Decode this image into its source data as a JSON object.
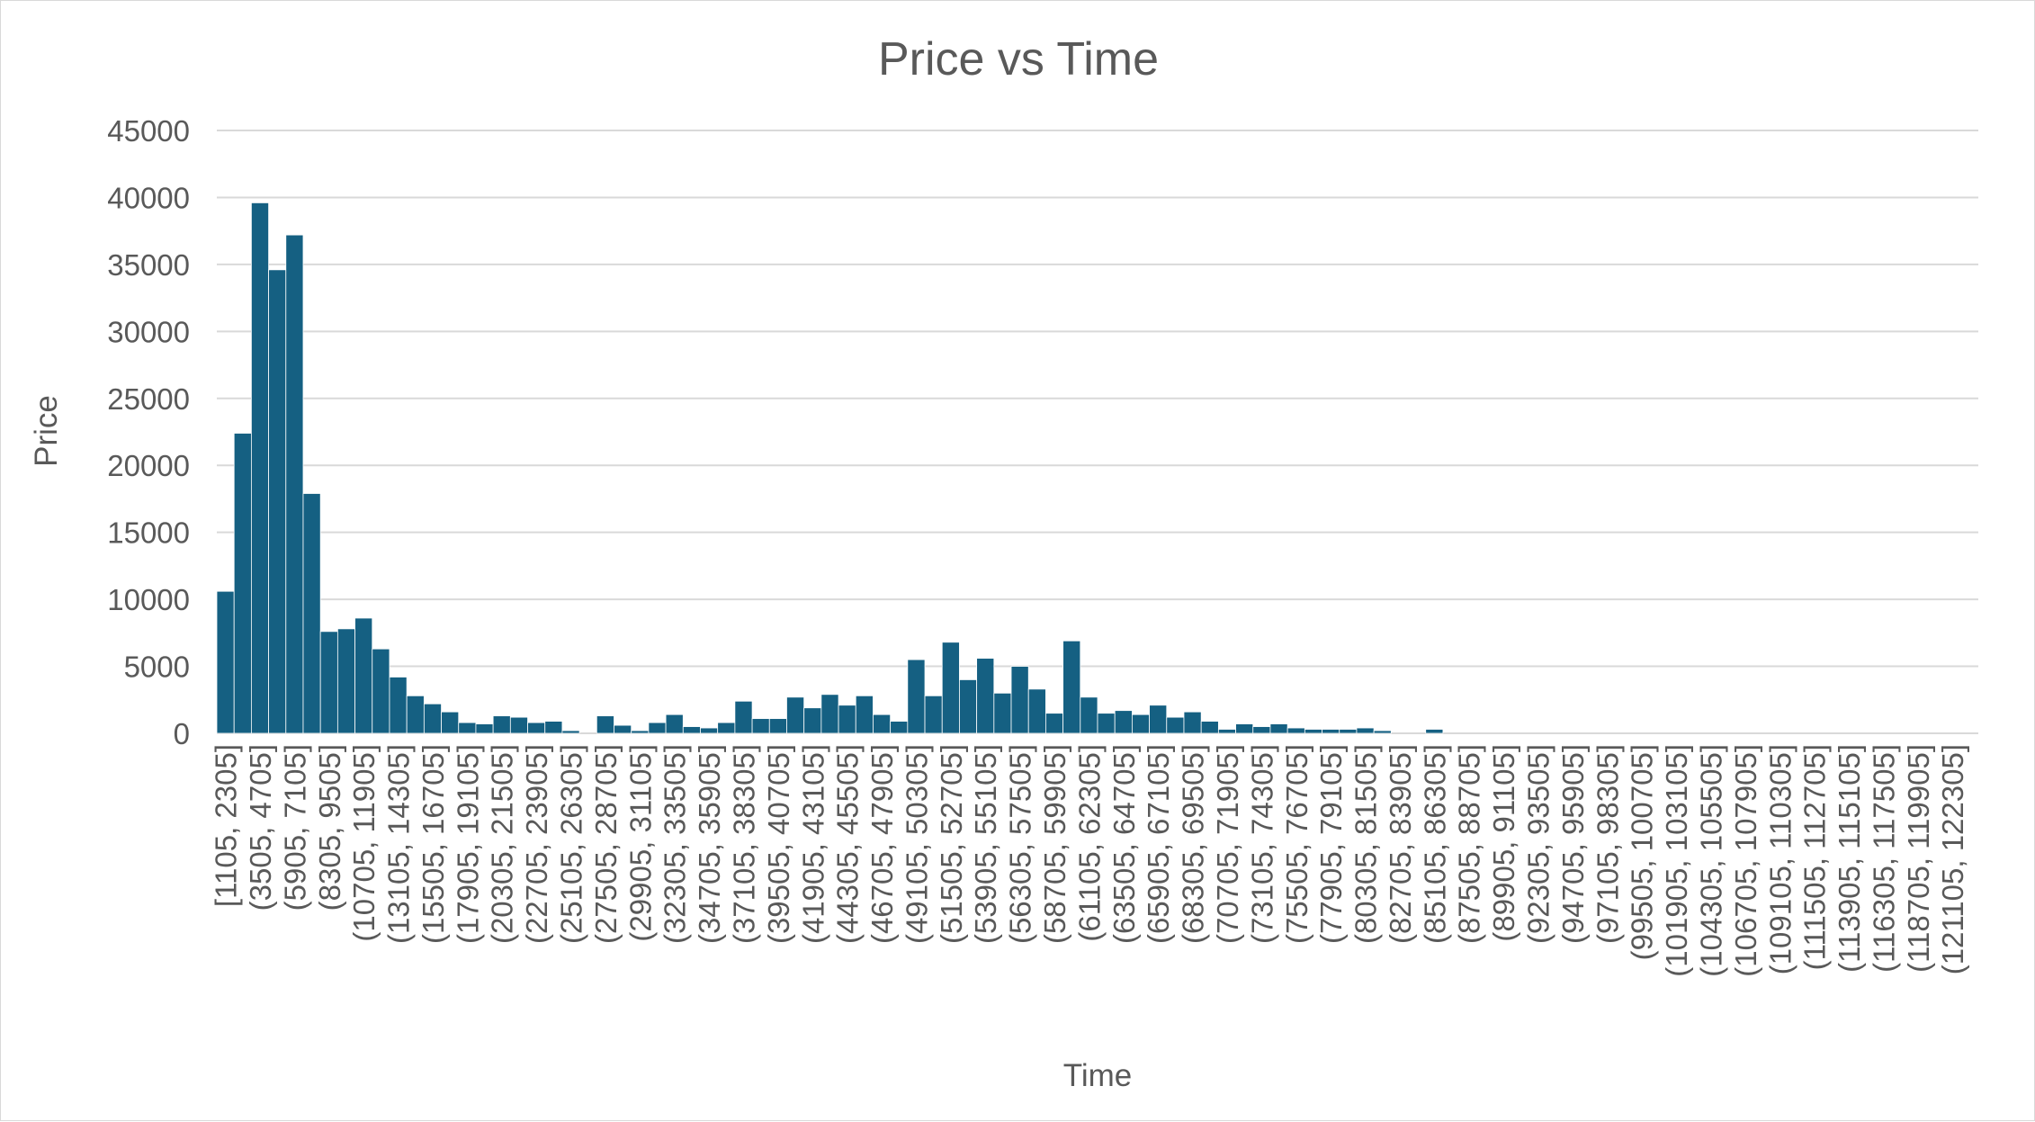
{
  "chart_data": {
    "type": "bar",
    "title": "Price vs Time",
    "xlabel": "Time",
    "ylabel": "Price",
    "ylim": [
      0,
      45000
    ],
    "yticks": [
      0,
      5000,
      10000,
      15000,
      20000,
      25000,
      30000,
      35000,
      40000,
      45000
    ],
    "grid": true,
    "legend": "none",
    "bar_color": "#156082",
    "categories": [
      "[1105, 2305]",
      "(2305, 3505]",
      "(3505, 4705]",
      "(4705, 5905]",
      "(5905, 7105]",
      "(7105, 8305]",
      "(8305, 9505]",
      "(9505, 10705]",
      "(10705, 11905]",
      "(11905, 13105]",
      "(13105, 14305]",
      "(14305, 15505]",
      "(15505, 16705]",
      "(16705, 17905]",
      "(17905, 19105]",
      "(19105, 20305]",
      "(20305, 21505]",
      "(21505, 22705]",
      "(22705, 23905]",
      "(23905, 25105]",
      "(25105, 26305]",
      "(26305, 27505]",
      "(27505, 28705]",
      "(28705, 29905]",
      "(29905, 31105]",
      "(31105, 32305]",
      "(32305, 33505]",
      "(33505, 34705]",
      "(34705, 35905]",
      "(35905, 37105]",
      "(37105, 38305]",
      "(38305, 39505]",
      "(39505, 40705]",
      "(40705, 41905]",
      "(41905, 43105]",
      "(43105, 44305]",
      "(44305, 45505]",
      "(45505, 46705]",
      "(46705, 47905]",
      "(47905, 49105]",
      "(49105, 50305]",
      "(50305, 51505]",
      "(51505, 52705]",
      "(52705, 53905]",
      "(53905, 55105]",
      "(55105, 56305]",
      "(56305, 57505]",
      "(57505, 58705]",
      "(58705, 59905]",
      "(59905, 61105]",
      "(61105, 62305]",
      "(62305, 63505]",
      "(63505, 64705]",
      "(64705, 65905]",
      "(65905, 67105]",
      "(67105, 68305]",
      "(68305, 69505]",
      "(69505, 70705]",
      "(70705, 71905]",
      "(71905, 73105]",
      "(73105, 74305]",
      "(74305, 75505]",
      "(75505, 76705]",
      "(76705, 77905]",
      "(77905, 79105]",
      "(79105, 80305]",
      "(80305, 81505]",
      "(81505, 82705]",
      "(82705, 83905]",
      "(83905, 85105]",
      "(85105, 86305]",
      "(86305, 87505]",
      "(87505, 88705]",
      "(88705, 89905]",
      "(89905, 91105]",
      "(91105, 92305]",
      "(92305, 93505]",
      "(93505, 94705]",
      "(94705, 95905]",
      "(95905, 97105]",
      "(97105, 98305]",
      "(98305, 99505]",
      "(99505, 100705]",
      "(100705, 101905]",
      "(101905, 103105]",
      "(103105, 104305]",
      "(104305, 105505]",
      "(105505, 106705]",
      "(106705, 107905]",
      "(107905, 109105]",
      "(109105, 110305]",
      "(110305, 111505]",
      "(111505, 112705]",
      "(112705, 113905]",
      "(113905, 115105]",
      "(115105, 116305]",
      "(116305, 117505]",
      "(117505, 118705]",
      "(118705, 119905]",
      "(119905, 121105]",
      "(121105, 122305]",
      "(122305, 123505]"
    ],
    "values": [
      10600,
      22400,
      39600,
      34600,
      37200,
      17900,
      7600,
      7800,
      8600,
      6300,
      4200,
      2800,
      2200,
      1600,
      800,
      700,
      1300,
      1200,
      800,
      900,
      200,
      0,
      1300,
      600,
      200,
      800,
      1400,
      500,
      400,
      800,
      2400,
      1100,
      1100,
      2700,
      1900,
      2900,
      2100,
      2800,
      1400,
      900,
      5500,
      2800,
      6800,
      4000,
      5600,
      3000,
      5000,
      3300,
      1500,
      6900,
      2700,
      1500,
      1700,
      1400,
      2100,
      1200,
      1600,
      900,
      300,
      700,
      500,
      700,
      400,
      300,
      300,
      300,
      400,
      200,
      0,
      0,
      300,
      0,
      0,
      0,
      0,
      0,
      0,
      0,
      0,
      0,
      0,
      0,
      0,
      0,
      0,
      0,
      0,
      0,
      0,
      0,
      0,
      0,
      0,
      0,
      0,
      0,
      0,
      0,
      0,
      0,
      0,
      0
    ],
    "shown_tick_labels": [
      "[1105, 2305]",
      "(3505, 4705]",
      "(5905, 7105]",
      "(8305, 9505]",
      "(10705, 11905]",
      "(13105, 14305]",
      "(15505, 16705]",
      "(17905, 19105]",
      "(20305, 21505]",
      "(22705, 23905]",
      "(25105, 26305]",
      "(27505, 28705]",
      "(29905, 31105]",
      "(32305, 33505]",
      "(34705, 35905]",
      "(37105, 38305]",
      "(39505, 40705]",
      "(41905, 43105]",
      "(44305, 45505]",
      "(46705, 47905]",
      "(49105, 50305]",
      "(51505, 52705]",
      "(53905, 55105]",
      "(56305, 57505]",
      "(58705, 59905]",
      "(61105, 62305]",
      "(63505, 64705]",
      "(65905, 67105]",
      "(68305, 69505]",
      "(70705, 71905]",
      "(73105, 74305]",
      "(75505, 76705]",
      "(77905, 79105]",
      "(80305, 81505]",
      "(82705, 83905]",
      "(85105, 86305]",
      "(87505, 88705]",
      "(89905, 91105]",
      "(92305, 93505]",
      "(94705, 95905]",
      "(97105, 98305]",
      "(99505, 100705]",
      "(101905, 103105]",
      "(104305, 105505]",
      "(106705, 107905]",
      "(109105, 110305]",
      "(111505, 112705]",
      "(113905, 115105]",
      "(116305, 117505]",
      "(118705, 119905]",
      "(121105, 122305]"
    ]
  }
}
